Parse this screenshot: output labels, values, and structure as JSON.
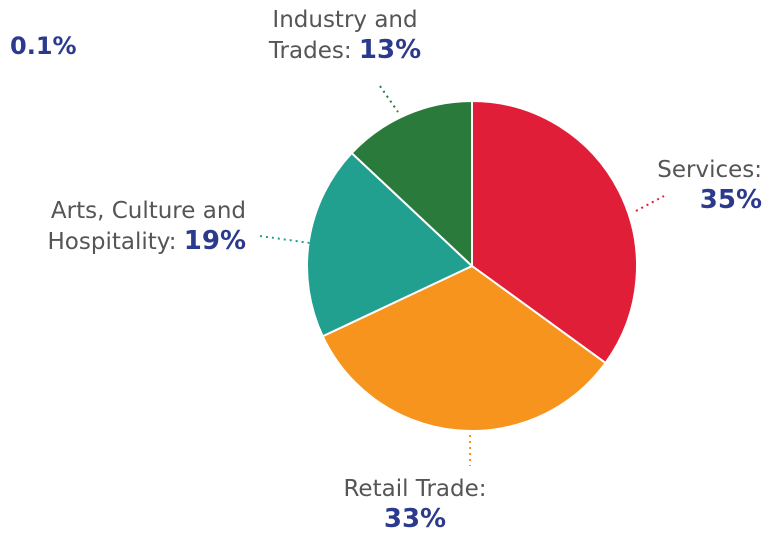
{
  "chart_data": {
    "type": "pie",
    "categories": [
      "Services:",
      "Retail Trade:",
      "Arts, Culture and Hospitality:",
      "Industry and Trades:"
    ],
    "values": [
      35,
      33,
      19,
      13
    ],
    "value_labels": [
      "35%",
      "33%",
      "19%",
      "13%"
    ],
    "colors": [
      "#e01e37",
      "#f7941d",
      "#21a090",
      "#2a7a3c"
    ],
    "annotations": [
      "0.1%"
    ]
  }
}
